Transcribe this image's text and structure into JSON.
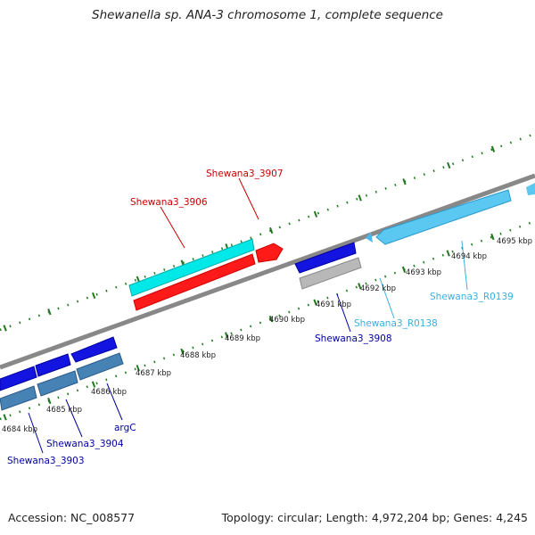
{
  "title": "Shewanella sp. ANA-3 chromosome 1, complete sequence",
  "footer": {
    "accession": "Accession: NC_008577",
    "summary": "Topology: circular; Length: 4,972,204 bp; Genes: 4,245"
  },
  "colors": {
    "backbone": "#888888",
    "tick": "#1f7a1f",
    "forward_cds": "#00e5e5",
    "forward_other": "#ff1a1a",
    "reverse_blue": "#1414e0",
    "reverse_steel": "#4682b4",
    "reverse_gray": "#b4b4b4",
    "rna": "#5ac8f0"
  },
  "scale": {
    "tick_labels": [
      "4684 kbp",
      "4685 kbp",
      "4686 kbp",
      "4687 kbp",
      "4688 kbp",
      "4689 kbp",
      "4690 kbp",
      "4691 kbp",
      "4692 kbp",
      "4693 kbp",
      "4694 kbp",
      "4695 kbp"
    ]
  },
  "labels": {
    "g3906": "Shewana3_3906",
    "g3907": "Shewana3_3907",
    "g3908": "Shewana3_3908",
    "r0138": "Shewana3_R0138",
    "r0139": "Shewana3_R0139",
    "g3903": "Shewana3_3903",
    "g3904": "Shewana3_3904",
    "argC": "argC"
  }
}
